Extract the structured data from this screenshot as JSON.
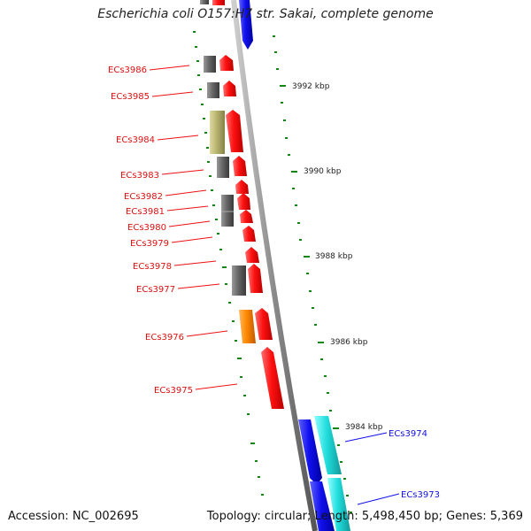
{
  "title": "Escherichia coli O157:H7 str. Sakai, complete genome",
  "footer": {
    "accession": "Accession: NC_002695",
    "summary": "Topology: circular; Length: 5,498,450 bp; Genes: 5,369"
  },
  "colors": {
    "forward_cds": "#ff0000",
    "reverse_cds": "#1010ee",
    "cyan_feature": "#22dddd",
    "gray_feature": "#666666",
    "khaki_feature": "#b8b470",
    "orange_feature": "#ff8800",
    "tick": "#118811",
    "backbone": "#888888"
  },
  "scale_labels": [
    "3984 kbp",
    "3986 kbp",
    "3988 kbp",
    "3990 kbp",
    "3992 kbp"
  ],
  "gene_labels_left": [
    "ECs3986",
    "ECs3985",
    "ECs3984",
    "ECs3983",
    "ECs3982",
    "ECs3981",
    "ECs3980",
    "ECs3979",
    "ECs3978",
    "ECs3977",
    "ECs3976",
    "ECs3975"
  ],
  "gene_labels_right": [
    "ECs3974",
    "ECs3973"
  ]
}
